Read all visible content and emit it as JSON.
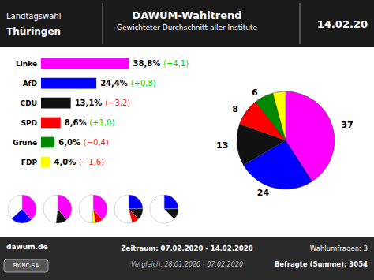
{
  "chart_data": [
    {
      "type": "bar",
      "orientation": "horizontal",
      "title": "DAWUM-Wahltrend",
      "subtitle": "Gewichteter Durchschnitt aller Institute",
      "categories": [
        "Linke",
        "AfD",
        "CDU",
        "SPD",
        "Grüne",
        "FDP"
      ],
      "values": [
        38.8,
        24.4,
        13.1,
        8.6,
        6.0,
        4.0
      ],
      "value_labels": [
        "38,8%",
        "24,4%",
        "13,1%",
        "8,6%",
        "6,0%",
        "4,0%"
      ],
      "colors": [
        "#ff00ff",
        "#0000ff",
        "#111111",
        "#ff0000",
        "#008800",
        "#ffff00"
      ],
      "data_labels": true,
      "xlim": [
        0,
        40
      ],
      "tick_labels": false,
      "annotations": [
        {
          "text": "(+4,1)",
          "color": "#00dd00",
          "category": "Linke"
        },
        {
          "text": "(+0,8)",
          "color": "#00dd00",
          "category": "AfD"
        },
        {
          "text": "(−3,2)",
          "color": "#ff2222",
          "category": "CDU"
        },
        {
          "text": "(+1,0)",
          "color": "#00dd00",
          "category": "SPD"
        },
        {
          "text": "(−0,4)",
          "color": "#ff2222",
          "category": "Grüne"
        },
        {
          "text": "(−1,6)",
          "color": "#ff2222",
          "category": "FDP"
        },
        {
          "text": "Landtagswahl"
        },
        {
          "text": "Thüringen"
        },
        {
          "text": "14.02.20"
        },
        {
          "text": "dawum.de"
        },
        {
          "text": "BY-NC-SA"
        },
        {
          "text": "Zeitraum: 07.02.2020 - 14.02.2020"
        },
        {
          "text": "Vergleich: 28.01.2020 - 07.02.2020"
        },
        {
          "text": "Wahlumfragen: 3"
        },
        {
          "text": "Befragte (Summe): 3054"
        }
      ]
    },
    {
      "type": "pie",
      "values": [
        38.8,
        24.4,
        13.1,
        8.6,
        6.0,
        4.0
      ],
      "colors": [
        "#ff00ff",
        "#0000ff",
        "#111111",
        "#ff0000",
        "#008800",
        "#ffff00"
      ],
      "annotations": [
        "37",
        "24",
        "13",
        "8",
        "6"
      ]
    },
    {
      "type": "pie",
      "values": [
        38.8,
        24.4,
        36.8
      ],
      "colors": [
        "#ff00ff",
        "#0000ff",
        "#ffffff"
      ]
    },
    {
      "type": "pie",
      "values": [
        38.8,
        13.1,
        48.1
      ],
      "colors": [
        "#ff00ff",
        "#111111",
        "#ffffff"
      ]
    },
    {
      "type": "pie",
      "values": [
        38.8,
        8.6,
        4.0,
        48.6
      ],
      "colors": [
        "#ff00ff",
        "#ff0000",
        "#ffff00",
        "#ffffff"
      ]
    },
    {
      "type": "pie",
      "values": [
        24.4,
        13.1,
        8.6,
        53.9
      ],
      "colors": [
        "#0000ff",
        "#111111",
        "#ff0000",
        "#ffffff"
      ]
    },
    {
      "type": "pie",
      "values": [
        24.4,
        13.1,
        62.5
      ],
      "colors": [
        "#0000ff",
        "#111111",
        "#ffffff"
      ]
    }
  ]
}
